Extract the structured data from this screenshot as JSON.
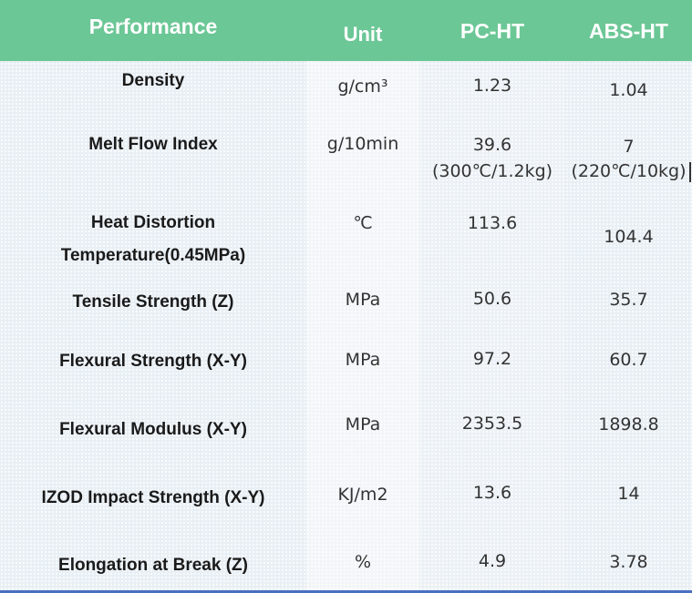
{
  "header": {
    "performance": "Performance",
    "unit": "Unit",
    "pc_ht": "PC-HT",
    "abs_ht": "ABS-HT"
  },
  "rows": [
    {
      "name": "Density",
      "unit": "g/cm³",
      "pc": "1.23",
      "abs": "1.04"
    },
    {
      "name": "Melt Flow Index",
      "unit": "g/10min",
      "pc": "39.6",
      "pc_note": "(300℃/1.2kg)",
      "abs": "7",
      "abs_note": "(220℃/10kg)"
    },
    {
      "name": "Heat Distortion",
      "name_line2": "Temperature(0.45MPa)",
      "unit": "℃",
      "pc": "113.6",
      "abs": "104.4"
    },
    {
      "name": "Tensile Strength (Z)",
      "unit": "MPa",
      "pc": "50.6",
      "abs": "35.7"
    },
    {
      "name": "Flexural Strength (X-Y)",
      "unit": "MPa",
      "pc": "97.2",
      "abs": "60.7"
    },
    {
      "name": "Flexural Modulus (X-Y)",
      "unit": "MPa",
      "pc": "2353.5",
      "abs": "1898.8"
    },
    {
      "name": "IZOD Impact Strength (X-Y)",
      "unit": "KJ/m2",
      "pc": "13.6",
      "abs": "14"
    },
    {
      "name": "Elongation at Break (Z)",
      "unit": "%",
      "pc": "4.9",
      "abs": "3.78"
    }
  ],
  "colors": {
    "header_bg": "#6cc796",
    "header_text": "#ffffff",
    "body_bg": "#e8eff5",
    "bottom_border": "#4a6fc0"
  }
}
